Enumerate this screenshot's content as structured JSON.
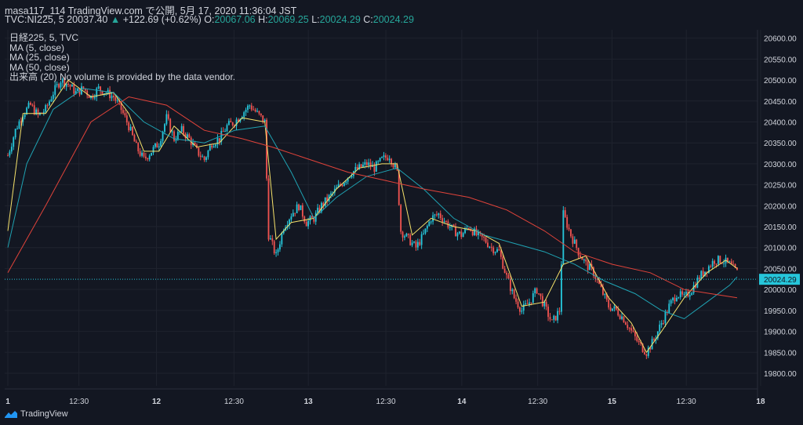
{
  "header": {
    "line1": "masa117_114 TradingView.com で公開, 5月 17, 2020 11:36:04 JST",
    "symbol": "TVC:NI225, 5",
    "last": "20037.40",
    "arrow": "▲",
    "change": "+122.69 (+0.62%)",
    "o_label": "O:",
    "o": "20067.06",
    "h_label": "H:",
    "h": "20069.25",
    "l_label": "L:",
    "l": "20024.29",
    "c_label": "C:",
    "c": "20024.29"
  },
  "legend": {
    "title": "日経225, 5, TVC",
    "ma5": "MA (5, close)",
    "ma25": "MA (25, close)",
    "ma50": "MA (50, close)",
    "volume_note": "出来高 (20) No volume is provided by the data vendor."
  },
  "footer": {
    "brand": "TradingView"
  },
  "colors": {
    "background": "#131722",
    "grid": "#1f232e",
    "up": "#26c6da",
    "down": "#ef5350",
    "ma5": "#f7e36b",
    "ma25": "#1fa3b3",
    "ma50": "#e0433a",
    "price_badge": "#26c6da"
  },
  "chart_data": {
    "type": "candlestick",
    "ylim": [
      19770,
      20620
    ],
    "y_ticks": [
      "20600.00",
      "20550.00",
      "20500.00",
      "20450.00",
      "20400.00",
      "20350.00",
      "20300.00",
      "20250.00",
      "20200.00",
      "20150.00",
      "20100.00",
      "20050.00",
      "20000.00",
      "19950.00",
      "19900.00",
      "19850.00",
      "19800.00"
    ],
    "x_ticks": [
      "1",
      "12:30",
      "12",
      "12:30",
      "13",
      "12:30",
      "14",
      "12:30",
      "15",
      "12:30",
      "18"
    ],
    "last_price_label": "20024.29",
    "last_price": 20024.29,
    "price_path": [
      [
        0,
        20320
      ],
      [
        4,
        20380
      ],
      [
        8,
        20420
      ],
      [
        12,
        20440
      ],
      [
        16,
        20415
      ],
      [
        20,
        20430
      ],
      [
        24,
        20470
      ],
      [
        28,
        20500
      ],
      [
        32,
        20490
      ],
      [
        36,
        20470
      ],
      [
        40,
        20480
      ],
      [
        44,
        20460
      ],
      [
        48,
        20480
      ],
      [
        52,
        20470
      ],
      [
        56,
        20460
      ],
      [
        60,
        20430
      ],
      [
        64,
        20390
      ],
      [
        68,
        20340
      ],
      [
        72,
        20310
      ],
      [
        76,
        20330
      ],
      [
        80,
        20350
      ],
      [
        84,
        20410
      ],
      [
        88,
        20360
      ],
      [
        92,
        20380
      ],
      [
        96,
        20360
      ],
      [
        100,
        20330
      ],
      [
        104,
        20310
      ],
      [
        108,
        20350
      ],
      [
        112,
        20360
      ],
      [
        116,
        20390
      ],
      [
        120,
        20400
      ],
      [
        124,
        20420
      ],
      [
        128,
        20440
      ],
      [
        132,
        20420
      ],
      [
        136,
        20400
      ],
      [
        138,
        20130
      ],
      [
        142,
        20080
      ],
      [
        146,
        20150
      ],
      [
        150,
        20180
      ],
      [
        154,
        20200
      ],
      [
        158,
        20160
      ],
      [
        162,
        20170
      ],
      [
        166,
        20200
      ],
      [
        170,
        20220
      ],
      [
        174,
        20240
      ],
      [
        178,
        20260
      ],
      [
        182,
        20280
      ],
      [
        186,
        20290
      ],
      [
        190,
        20300
      ],
      [
        194,
        20290
      ],
      [
        198,
        20310
      ],
      [
        202,
        20320
      ],
      [
        206,
        20280
      ],
      [
        208,
        20140
      ],
      [
        212,
        20120
      ],
      [
        216,
        20100
      ],
      [
        220,
        20130
      ],
      [
        224,
        20170
      ],
      [
        228,
        20180
      ],
      [
        232,
        20160
      ],
      [
        236,
        20140
      ],
      [
        240,
        20130
      ],
      [
        244,
        20150
      ],
      [
        248,
        20130
      ],
      [
        252,
        20120
      ],
      [
        256,
        20100
      ],
      [
        260,
        20090
      ],
      [
        264,
        20030
      ],
      [
        268,
        19980
      ],
      [
        272,
        19950
      ],
      [
        276,
        19970
      ],
      [
        280,
        20000
      ],
      [
        284,
        19960
      ],
      [
        288,
        19920
      ],
      [
        292,
        19950
      ],
      [
        294,
        20180
      ],
      [
        298,
        20130
      ],
      [
        302,
        20090
      ],
      [
        306,
        20060
      ],
      [
        310,
        20040
      ],
      [
        314,
        20000
      ],
      [
        318,
        19960
      ],
      [
        322,
        19950
      ],
      [
        326,
        19930
      ],
      [
        330,
        19900
      ],
      [
        334,
        19870
      ],
      [
        338,
        19850
      ],
      [
        342,
        19880
      ],
      [
        346,
        19920
      ],
      [
        350,
        19960
      ],
      [
        354,
        19990
      ],
      [
        358,
        19980
      ],
      [
        362,
        20000
      ],
      [
        366,
        20030
      ],
      [
        370,
        20050
      ],
      [
        374,
        20070
      ],
      [
        378,
        20070
      ],
      [
        382,
        20060
      ],
      [
        386,
        20040
      ]
    ],
    "ma_series": [
      {
        "name": "MA (5, close)",
        "color": "#f7e36b",
        "points": [
          [
            0,
            20140
          ],
          [
            8,
            20420
          ],
          [
            20,
            20420
          ],
          [
            32,
            20500
          ],
          [
            44,
            20460
          ],
          [
            56,
            20470
          ],
          [
            64,
            20420
          ],
          [
            72,
            20330
          ],
          [
            80,
            20330
          ],
          [
            88,
            20390
          ],
          [
            100,
            20340
          ],
          [
            112,
            20350
          ],
          [
            124,
            20410
          ],
          [
            136,
            20400
          ],
          [
            142,
            20120
          ],
          [
            150,
            20160
          ],
          [
            162,
            20170
          ],
          [
            174,
            20240
          ],
          [
            186,
            20290
          ],
          [
            198,
            20300
          ],
          [
            206,
            20300
          ],
          [
            214,
            20130
          ],
          [
            224,
            20170
          ],
          [
            236,
            20150
          ],
          [
            248,
            20140
          ],
          [
            260,
            20110
          ],
          [
            272,
            19960
          ],
          [
            284,
            19970
          ],
          [
            294,
            20060
          ],
          [
            306,
            20080
          ],
          [
            318,
            19980
          ],
          [
            330,
            19920
          ],
          [
            338,
            19850
          ],
          [
            346,
            19900
          ],
          [
            358,
            19980
          ],
          [
            370,
            20040
          ],
          [
            380,
            20070
          ],
          [
            386,
            20050
          ]
        ]
      },
      {
        "name": "MA (25, close)",
        "color": "#1fa3b3",
        "points": [
          [
            0,
            20100
          ],
          [
            10,
            20300
          ],
          [
            24,
            20430
          ],
          [
            40,
            20480
          ],
          [
            56,
            20470
          ],
          [
            72,
            20400
          ],
          [
            88,
            20360
          ],
          [
            104,
            20350
          ],
          [
            120,
            20380
          ],
          [
            136,
            20390
          ],
          [
            150,
            20280
          ],
          [
            162,
            20170
          ],
          [
            174,
            20220
          ],
          [
            190,
            20270
          ],
          [
            206,
            20290
          ],
          [
            220,
            20240
          ],
          [
            236,
            20170
          ],
          [
            252,
            20130
          ],
          [
            268,
            20110
          ],
          [
            284,
            20090
          ],
          [
            300,
            20060
          ],
          [
            316,
            20020
          ],
          [
            332,
            19990
          ],
          [
            346,
            19950
          ],
          [
            358,
            19930
          ],
          [
            370,
            19970
          ],
          [
            382,
            20010
          ],
          [
            386,
            20030
          ]
        ]
      },
      {
        "name": "MA (50, close)",
        "color": "#e0433a",
        "points": [
          [
            0,
            20040
          ],
          [
            20,
            20200
          ],
          [
            44,
            20400
          ],
          [
            64,
            20460
          ],
          [
            84,
            20440
          ],
          [
            104,
            20380
          ],
          [
            124,
            20360
          ],
          [
            140,
            20340
          ],
          [
            160,
            20310
          ],
          [
            180,
            20280
          ],
          [
            200,
            20260
          ],
          [
            220,
            20240
          ],
          [
            244,
            20220
          ],
          [
            264,
            20190
          ],
          [
            284,
            20140
          ],
          [
            300,
            20090
          ],
          [
            320,
            20060
          ],
          [
            340,
            20040
          ],
          [
            358,
            20000
          ],
          [
            372,
            19990
          ],
          [
            386,
            19980
          ]
        ]
      }
    ]
  }
}
